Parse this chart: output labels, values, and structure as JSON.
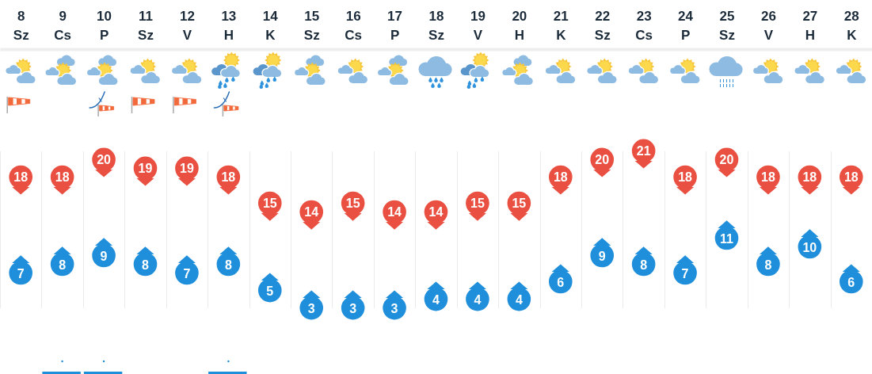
{
  "chart_data": {
    "type": "scatter",
    "categories": [
      "8 Sz",
      "9 Cs",
      "10 P",
      "11 Sz",
      "12 V",
      "13 H",
      "14 K",
      "15 Sz",
      "16 Cs",
      "17 P",
      "18 Sz",
      "19 V",
      "20 H",
      "21 K",
      "22 Sz",
      "23 Cs",
      "24 P",
      "25 Sz",
      "26 V",
      "27 H",
      "28 K"
    ],
    "series": [
      {
        "color": "#ea5041",
        "values": [
          18,
          18,
          20,
          19,
          19,
          18,
          15,
          14,
          15,
          14,
          14,
          15,
          15,
          18,
          20,
          21,
          18,
          20,
          18,
          18,
          18
        ]
      },
      {
        "color": "#1f8fdb",
        "values": [
          7,
          8,
          9,
          8,
          7,
          8,
          5,
          3,
          3,
          3,
          4,
          4,
          4,
          6,
          9,
          8,
          7,
          11,
          8,
          10,
          6
        ]
      }
    ],
    "data_labels": true,
    "marker": "circle",
    "grid": "x",
    "tick_labels": "x"
  }
}
